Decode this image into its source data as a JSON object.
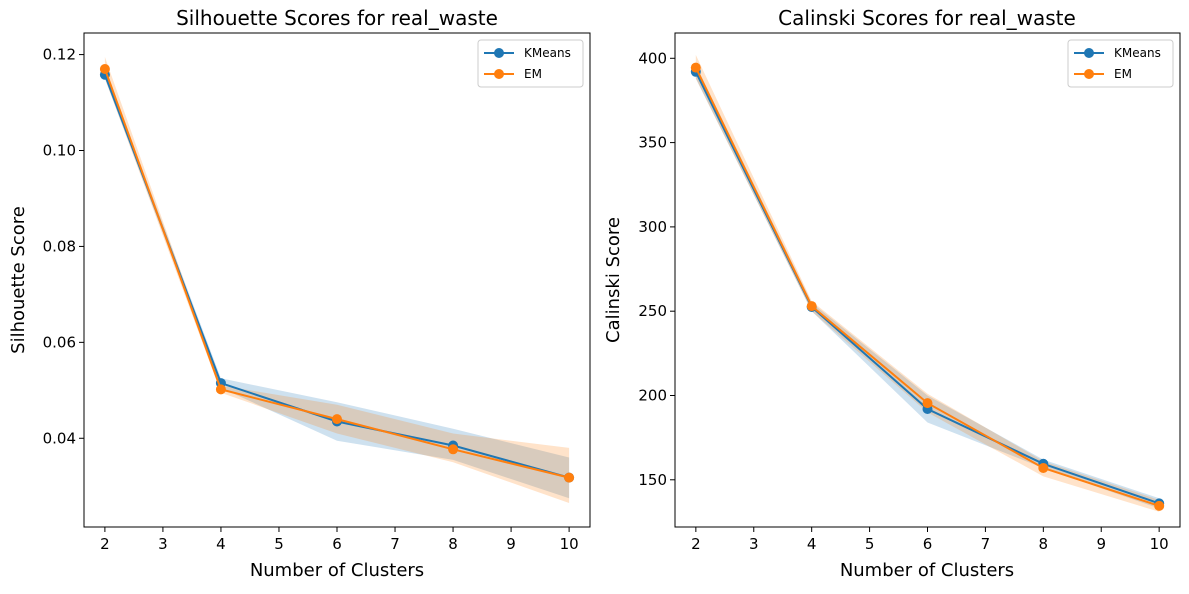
{
  "chart_data": [
    {
      "type": "line",
      "title": "Silhouette Scores for real_waste",
      "xlabel": "Number of Clusters",
      "ylabel": "Silhouette Score",
      "xlim": [
        1.64,
        10.36
      ],
      "ylim": [
        0.0215,
        0.1245
      ],
      "xticks": [
        2,
        3,
        4,
        5,
        6,
        7,
        8,
        9,
        10
      ],
      "yticks": [
        0.04,
        0.06,
        0.08,
        0.1,
        0.12
      ],
      "ytick_labels": [
        "0.04",
        "0.06",
        "0.08",
        "0.10",
        "0.12"
      ],
      "x": [
        2,
        4,
        6,
        8,
        10
      ],
      "series": [
        {
          "name": "KMeans",
          "color": "#1f77b4",
          "values": [
            0.1158,
            0.0515,
            0.0435,
            0.0385,
            0.0318
          ],
          "lower": [
            0.115,
            0.0505,
            0.0395,
            0.0355,
            0.0275
          ],
          "upper": [
            0.1168,
            0.0525,
            0.0475,
            0.042,
            0.036
          ]
        },
        {
          "name": "EM",
          "color": "#ff7f0e",
          "values": [
            0.117,
            0.0502,
            0.044,
            0.0377,
            0.0318
          ],
          "lower": [
            0.115,
            0.0495,
            0.041,
            0.035,
            0.0265
          ],
          "upper": [
            0.1195,
            0.051,
            0.047,
            0.041,
            0.038
          ]
        }
      ],
      "grid": false,
      "legend": "top-right"
    },
    {
      "type": "line",
      "title": "Calinski Scores for real_waste",
      "xlabel": "Number of Clusters",
      "ylabel": "Calinski Score",
      "xlim": [
        1.64,
        10.36
      ],
      "ylim": [
        122,
        415
      ],
      "xticks": [
        2,
        3,
        4,
        5,
        6,
        7,
        8,
        9,
        10
      ],
      "yticks": [
        150,
        200,
        250,
        300,
        350,
        400
      ],
      "ytick_labels": [
        "150",
        "200",
        "250",
        "300",
        "350",
        "400"
      ],
      "x": [
        2,
        4,
        6,
        8,
        10
      ],
      "series": [
        {
          "name": "KMeans",
          "color": "#1f77b4",
          "values": [
            392,
            252.5,
            192,
            159.5,
            136
          ],
          "lower": [
            388,
            250,
            184,
            157,
            133
          ],
          "upper": [
            396,
            255,
            200,
            162,
            139
          ]
        },
        {
          "name": "EM",
          "color": "#ff7f0e",
          "values": [
            394.5,
            253,
            195.5,
            157,
            134.5
          ],
          "lower": [
            388,
            250,
            190,
            152,
            131
          ],
          "upper": [
            402,
            256,
            201,
            161,
            138
          ]
        }
      ],
      "grid": false,
      "legend": "top-right"
    }
  ]
}
